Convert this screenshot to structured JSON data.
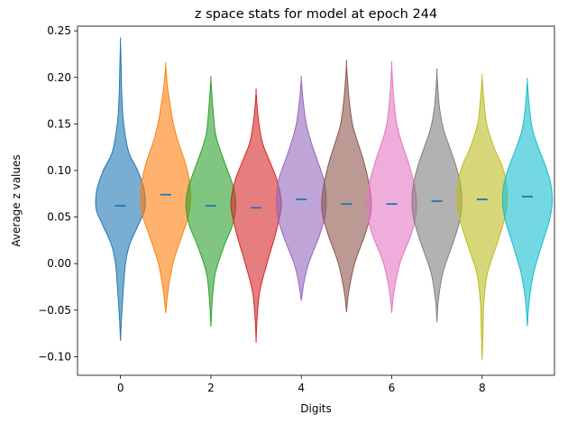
{
  "chart_data": {
    "type": "violin",
    "title": "z space stats for model at epoch 244",
    "xlabel": "Digits",
    "ylabel": "Average z values",
    "xlim": [
      -0.95,
      9.6
    ],
    "ylim": [
      -0.12,
      0.255
    ],
    "x_ticks": [
      0,
      2,
      4,
      6,
      8
    ],
    "y_ticks": [
      -0.1,
      -0.05,
      0.0,
      0.05,
      0.1,
      0.15,
      0.2,
      0.25
    ],
    "grid": false,
    "legend": "none",
    "mean_line_color": "#1f77b4",
    "violins": [
      {
        "digit": 0,
        "min": -0.083,
        "max": 0.239,
        "mean": 0.062,
        "color": "#1f77b4",
        "profile": [
          [
            -0.083,
            0.0
          ],
          [
            -0.06,
            0.02
          ],
          [
            -0.03,
            0.06
          ],
          [
            0.0,
            0.11
          ],
          [
            0.02,
            0.2
          ],
          [
            0.04,
            0.38
          ],
          [
            0.055,
            0.52
          ],
          [
            0.065,
            0.55
          ],
          [
            0.08,
            0.52
          ],
          [
            0.1,
            0.38
          ],
          [
            0.12,
            0.18
          ],
          [
            0.15,
            0.07
          ],
          [
            0.18,
            0.03
          ],
          [
            0.21,
            0.015
          ],
          [
            0.239,
            0.0
          ]
        ]
      },
      {
        "digit": 1,
        "min": -0.053,
        "max": 0.213,
        "mean": 0.074,
        "color": "#ff7f0e",
        "profile": [
          [
            -0.053,
            0.0
          ],
          [
            -0.03,
            0.05
          ],
          [
            0.0,
            0.16
          ],
          [
            0.03,
            0.36
          ],
          [
            0.05,
            0.5
          ],
          [
            0.07,
            0.55
          ],
          [
            0.09,
            0.52
          ],
          [
            0.11,
            0.42
          ],
          [
            0.13,
            0.28
          ],
          [
            0.15,
            0.17
          ],
          [
            0.17,
            0.1
          ],
          [
            0.19,
            0.04
          ],
          [
            0.213,
            0.0
          ]
        ]
      },
      {
        "digit": 2,
        "min": -0.068,
        "max": 0.198,
        "mean": 0.062,
        "color": "#2ca02c",
        "profile": [
          [
            -0.068,
            0.0
          ],
          [
            -0.04,
            0.03
          ],
          [
            -0.01,
            0.1
          ],
          [
            0.02,
            0.3
          ],
          [
            0.04,
            0.47
          ],
          [
            0.06,
            0.55
          ],
          [
            0.08,
            0.51
          ],
          [
            0.1,
            0.37
          ],
          [
            0.12,
            0.22
          ],
          [
            0.14,
            0.1
          ],
          [
            0.17,
            0.04
          ],
          [
            0.198,
            0.0
          ]
        ]
      },
      {
        "digit": 3,
        "min": -0.085,
        "max": 0.184,
        "mean": 0.06,
        "color": "#d62728",
        "profile": [
          [
            -0.085,
            0.0
          ],
          [
            -0.06,
            0.02
          ],
          [
            -0.03,
            0.08
          ],
          [
            0.0,
            0.24
          ],
          [
            0.03,
            0.42
          ],
          [
            0.055,
            0.54
          ],
          [
            0.07,
            0.55
          ],
          [
            0.09,
            0.46
          ],
          [
            0.11,
            0.3
          ],
          [
            0.13,
            0.14
          ],
          [
            0.155,
            0.05
          ],
          [
            0.184,
            0.0
          ]
        ]
      },
      {
        "digit": 4,
        "min": -0.04,
        "max": 0.198,
        "mean": 0.069,
        "color": "#9467bd",
        "profile": [
          [
            -0.04,
            0.0
          ],
          [
            -0.02,
            0.06
          ],
          [
            0.0,
            0.16
          ],
          [
            0.03,
            0.4
          ],
          [
            0.05,
            0.52
          ],
          [
            0.07,
            0.55
          ],
          [
            0.09,
            0.5
          ],
          [
            0.11,
            0.36
          ],
          [
            0.13,
            0.22
          ],
          [
            0.15,
            0.11
          ],
          [
            0.175,
            0.04
          ],
          [
            0.198,
            0.0
          ]
        ]
      },
      {
        "digit": 5,
        "min": -0.052,
        "max": 0.214,
        "mean": 0.064,
        "color": "#8c564b",
        "profile": [
          [
            -0.052,
            0.0
          ],
          [
            -0.03,
            0.05
          ],
          [
            0.0,
            0.18
          ],
          [
            0.03,
            0.4
          ],
          [
            0.05,
            0.52
          ],
          [
            0.065,
            0.55
          ],
          [
            0.085,
            0.5
          ],
          [
            0.11,
            0.38
          ],
          [
            0.13,
            0.25
          ],
          [
            0.15,
            0.13
          ],
          [
            0.18,
            0.05
          ],
          [
            0.214,
            0.0
          ]
        ]
      },
      {
        "digit": 6,
        "min": -0.053,
        "max": 0.213,
        "mean": 0.064,
        "color": "#e377c2",
        "profile": [
          [
            -0.053,
            0.0
          ],
          [
            -0.03,
            0.05
          ],
          [
            0.0,
            0.18
          ],
          [
            0.03,
            0.42
          ],
          [
            0.05,
            0.53
          ],
          [
            0.065,
            0.55
          ],
          [
            0.085,
            0.5
          ],
          [
            0.11,
            0.36
          ],
          [
            0.13,
            0.22
          ],
          [
            0.15,
            0.11
          ],
          [
            0.18,
            0.04
          ],
          [
            0.213,
            0.0
          ]
        ]
      },
      {
        "digit": 7,
        "min": -0.063,
        "max": 0.205,
        "mean": 0.067,
        "color": "#7f7f7f",
        "profile": [
          [
            -0.063,
            0.0
          ],
          [
            -0.04,
            0.03
          ],
          [
            -0.01,
            0.13
          ],
          [
            0.02,
            0.34
          ],
          [
            0.045,
            0.5
          ],
          [
            0.065,
            0.55
          ],
          [
            0.085,
            0.52
          ],
          [
            0.105,
            0.42
          ],
          [
            0.125,
            0.28
          ],
          [
            0.145,
            0.14
          ],
          [
            0.17,
            0.05
          ],
          [
            0.205,
            0.0
          ]
        ]
      },
      {
        "digit": 8,
        "min": -0.104,
        "max": 0.2,
        "mean": 0.069,
        "color": "#bcbd22",
        "profile": [
          [
            -0.104,
            0.0
          ],
          [
            -0.07,
            0.02
          ],
          [
            -0.04,
            0.04
          ],
          [
            -0.01,
            0.12
          ],
          [
            0.02,
            0.32
          ],
          [
            0.045,
            0.48
          ],
          [
            0.065,
            0.55
          ],
          [
            0.085,
            0.54
          ],
          [
            0.105,
            0.44
          ],
          [
            0.125,
            0.26
          ],
          [
            0.15,
            0.1
          ],
          [
            0.175,
            0.04
          ],
          [
            0.2,
            0.0
          ]
        ]
      },
      {
        "digit": 9,
        "min": -0.067,
        "max": 0.196,
        "mean": 0.072,
        "color": "#17becf",
        "profile": [
          [
            -0.067,
            0.0
          ],
          [
            -0.04,
            0.04
          ],
          [
            -0.01,
            0.14
          ],
          [
            0.02,
            0.32
          ],
          [
            0.045,
            0.48
          ],
          [
            0.065,
            0.55
          ],
          [
            0.085,
            0.52
          ],
          [
            0.105,
            0.4
          ],
          [
            0.125,
            0.24
          ],
          [
            0.145,
            0.11
          ],
          [
            0.17,
            0.04
          ],
          [
            0.196,
            0.0
          ]
        ]
      }
    ]
  }
}
